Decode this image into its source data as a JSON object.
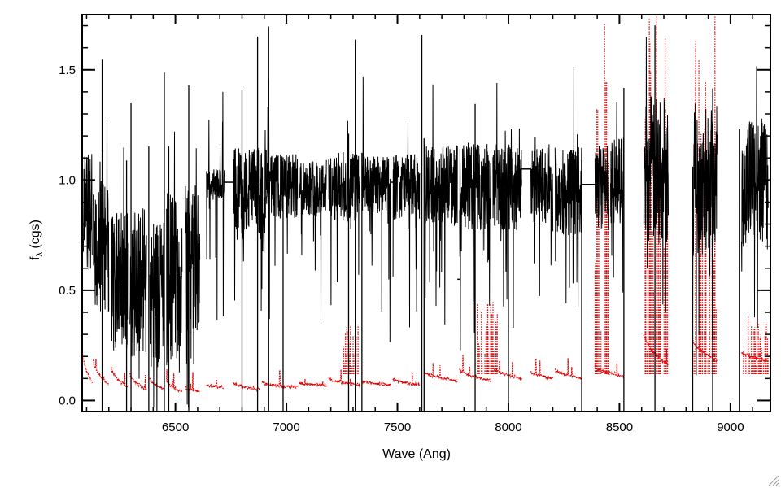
{
  "chart_data": {
    "type": "line",
    "title": "",
    "xlabel": "Wave (Ang)",
    "ylabel": "f",
    "ylabel_subscript": "λ",
    "ylabel_suffix": " (cgs)",
    "xlim": [
      6080,
      9180
    ],
    "ylim": [
      -0.05,
      1.75
    ],
    "xticks": [
      6500,
      7000,
      7500,
      8000,
      8500,
      9000
    ],
    "xtick_labels": [
      "6500",
      "7000",
      "7500",
      "8000",
      "8500",
      "9000"
    ],
    "yticks": [
      0.0,
      0.5,
      1.0,
      1.5
    ],
    "ytick_labels": [
      "0.0",
      "0.5",
      "1.0",
      "1.5"
    ],
    "grid": false,
    "legend": "none",
    "series": [
      {
        "style": "solid",
        "color": "#000000",
        "description_values": "normalized flux; continuum near 1.0 with noisy orders, deep absorption and order gaps; orders below are approximate",
        "orders": [
          {
            "x": [
              6085,
              6125
            ],
            "level": 0.85,
            "noise": 0.28
          },
          {
            "x": [
              6130,
              6200
            ],
            "level": 0.7,
            "noise": 0.3
          },
          {
            "x": [
              6210,
              6285
            ],
            "level": 0.55,
            "noise": 0.3
          },
          {
            "x": [
              6295,
              6370
            ],
            "level": 0.55,
            "noise": 0.35
          },
          {
            "x": [
              6385,
              6450
            ],
            "level": 0.5,
            "noise": 0.35
          },
          {
            "x": [
              6460,
              6530
            ],
            "level": 0.55,
            "noise": 0.4
          },
          {
            "x": [
              6545,
              6610
            ],
            "level": 0.65,
            "noise": 0.35
          },
          {
            "x": [
              6640,
              6720
            ],
            "level": 0.98,
            "noise": 0.07
          },
          {
            "x": [
              6760,
              6910
            ],
            "level": 0.95,
            "noise": 0.2
          },
          {
            "x": [
              6910,
              7050
            ],
            "level": 0.97,
            "noise": 0.15
          },
          {
            "x": [
              7060,
              7180
            ],
            "level": 0.97,
            "noise": 0.13
          },
          {
            "x": [
              7190,
              7330
            ],
            "level": 0.97,
            "noise": 0.16
          },
          {
            "x": [
              7340,
              7470
            ],
            "level": 0.98,
            "noise": 0.13
          },
          {
            "x": [
              7480,
              7600
            ],
            "level": 0.97,
            "noise": 0.15
          },
          {
            "x": [
              7620,
              7770
            ],
            "level": 0.98,
            "noise": 0.18
          },
          {
            "x": [
              7780,
              7920
            ],
            "level": 0.97,
            "noise": 0.2
          },
          {
            "x": [
              7930,
              8060
            ],
            "level": 0.97,
            "noise": 0.2
          },
          {
            "x": [
              8100,
              8200
            ],
            "level": 0.97,
            "noise": 0.18
          },
          {
            "x": [
              8210,
              8330
            ],
            "level": 0.95,
            "noise": 0.2
          },
          {
            "x": [
              8390,
              8450
            ],
            "level": 0.97,
            "noise": 0.2
          },
          {
            "x": [
              8460,
              8520
            ],
            "level": 1.0,
            "noise": 0.2
          },
          {
            "x": [
              8610,
              8720
            ],
            "level": 1.05,
            "noise": 0.35
          },
          {
            "x": [
              8830,
              8940
            ],
            "level": 1.0,
            "noise": 0.35
          },
          {
            "x": [
              9050,
              9170
            ],
            "level": 0.98,
            "noise": 0.3
          }
        ],
        "deep_lines": [
          6170,
          6280,
          6300,
          6380,
          6450,
          6470,
          6560,
          6800,
          6870,
          6920,
          6985,
          7280,
          7310,
          7340,
          7610,
          7620,
          7850,
          8000,
          8330,
          8520,
          8660,
          8830,
          8920,
          9040
        ],
        "gap_bridges": [
          {
            "x0": 6720,
            "x1": 6760,
            "y": 0.99
          },
          {
            "x0": 7470,
            "x1": 7480,
            "y": 0.99
          },
          {
            "x0": 7770,
            "x1": 7780,
            "y": 0.55
          },
          {
            "x0": 8060,
            "x1": 8100,
            "y": 1.05
          },
          {
            "x0": 8330,
            "x1": 8390,
            "y": 0.98
          }
        ]
      },
      {
        "style": "dotted",
        "color": "#e00000",
        "description_values": "flux error; low baseline rising at order edges; orders below are approximate",
        "orders": [
          {
            "x": [
              6085,
              6125
            ],
            "start": 0.2,
            "end": 0.08
          },
          {
            "x": [
              6130,
              6200
            ],
            "start": 0.18,
            "end": 0.07
          },
          {
            "x": [
              6210,
              6285
            ],
            "start": 0.15,
            "end": 0.06
          },
          {
            "x": [
              6295,
              6370
            ],
            "start": 0.12,
            "end": 0.05
          },
          {
            "x": [
              6385,
              6450
            ],
            "start": 0.1,
            "end": 0.05
          },
          {
            "x": [
              6460,
              6530
            ],
            "start": 0.09,
            "end": 0.04
          },
          {
            "x": [
              6545,
              6610
            ],
            "start": 0.06,
            "end": 0.04
          },
          {
            "x": [
              6640,
              6720
            ],
            "start": 0.07,
            "end": 0.06
          },
          {
            "x": [
              6760,
              6880
            ],
            "start": 0.08,
            "end": 0.05
          },
          {
            "x": [
              6890,
              7050
            ],
            "start": 0.08,
            "end": 0.06
          },
          {
            "x": [
              7060,
              7180
            ],
            "start": 0.08,
            "end": 0.07
          },
          {
            "x": [
              7190,
              7330
            ],
            "start": 0.1,
            "end": 0.07
          },
          {
            "x": [
              7340,
              7470
            ],
            "start": 0.09,
            "end": 0.07
          },
          {
            "x": [
              7480,
              7600
            ],
            "start": 0.1,
            "end": 0.07
          },
          {
            "x": [
              7620,
              7770
            ],
            "start": 0.13,
            "end": 0.09
          },
          {
            "x": [
              7780,
              7920
            ],
            "start": 0.14,
            "end": 0.09
          },
          {
            "x": [
              7930,
              8060
            ],
            "start": 0.15,
            "end": 0.1
          },
          {
            "x": [
              8100,
              8200
            ],
            "start": 0.13,
            "end": 0.1
          },
          {
            "x": [
              8210,
              8330
            ],
            "start": 0.14,
            "end": 0.1
          },
          {
            "x": [
              8390,
              8520
            ],
            "start": 0.15,
            "end": 0.11
          },
          {
            "x": [
              8610,
              8720
            ],
            "start": 0.3,
            "end": 0.16
          },
          {
            "x": [
              8830,
              8940
            ],
            "start": 0.28,
            "end": 0.18
          },
          {
            "x": [
              9050,
              9170
            ],
            "start": 0.22,
            "end": 0.18
          }
        ],
        "spike_regions": [
          {
            "x": [
              7250,
              7330
            ],
            "max": 0.35
          },
          {
            "x": [
              7850,
              7950
            ],
            "max": 0.45
          },
          {
            "x": [
              8390,
              8450
            ],
            "max": 1.75
          },
          {
            "x": [
              8610,
              8720
            ],
            "max": 1.75
          },
          {
            "x": [
              8830,
              8940
            ],
            "max": 1.75
          },
          {
            "x": [
              9050,
              9170
            ],
            "max": 0.4
          }
        ]
      }
    ]
  }
}
